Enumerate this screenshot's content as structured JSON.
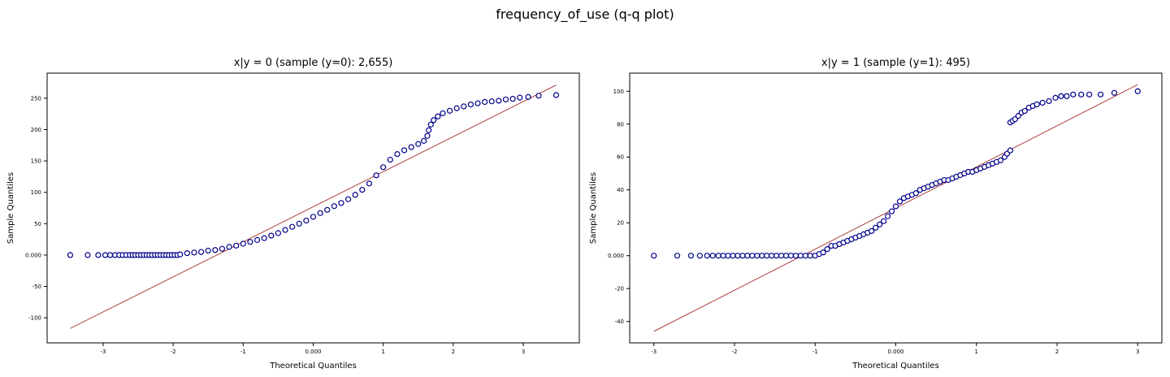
{
  "figure": {
    "title": "frequency_of_use (q-q plot)"
  },
  "chart_data": [
    {
      "type": "scatter",
      "title": "x|y = 0 (sample (y=0): 2,655)",
      "xlabel": "Theoretical Quantiles",
      "ylabel": "Sample Quantiles",
      "xlim": [
        -3.8,
        3.8
      ],
      "ylim": [
        -140,
        290
      ],
      "xticks": [
        -3,
        -2,
        -1,
        0,
        1,
        2,
        3
      ],
      "xtick_labels": [
        "-3",
        "-2",
        "-1",
        "0.000",
        "1",
        "2",
        "3"
      ],
      "yticks": [
        -100,
        -50,
        0,
        50,
        100,
        150,
        200,
        250
      ],
      "ytick_labels": [
        "-100",
        "-50",
        "0.000",
        "50",
        "100",
        "150",
        "200",
        "250"
      ],
      "reference_line": {
        "x": [
          -3.47,
          3.47
        ],
        "y": [
          -117,
          271
        ]
      },
      "points": [
        [
          -3.47,
          0
        ],
        [
          -3.22,
          0
        ],
        [
          -3.07,
          0
        ],
        [
          -2.97,
          0
        ],
        [
          -2.9,
          0
        ],
        [
          -2.83,
          0
        ],
        [
          -2.77,
          0
        ],
        [
          -2.72,
          0
        ],
        [
          -2.67,
          0
        ],
        [
          -2.62,
          0
        ],
        [
          -2.58,
          0
        ],
        [
          -2.54,
          0
        ],
        [
          -2.5,
          0
        ],
        [
          -2.46,
          0
        ],
        [
          -2.42,
          0
        ],
        [
          -2.38,
          0
        ],
        [
          -2.34,
          0
        ],
        [
          -2.3,
          0
        ],
        [
          -2.26,
          0
        ],
        [
          -2.22,
          0
        ],
        [
          -2.18,
          0
        ],
        [
          -2.14,
          0
        ],
        [
          -2.1,
          0
        ],
        [
          -2.06,
          0
        ],
        [
          -2.02,
          0
        ],
        [
          -1.98,
          0
        ],
        [
          -1.94,
          0
        ],
        [
          -1.9,
          1
        ],
        [
          -1.8,
          3
        ],
        [
          -1.7,
          4
        ],
        [
          -1.6,
          5
        ],
        [
          -1.5,
          7
        ],
        [
          -1.4,
          8
        ],
        [
          -1.3,
          10
        ],
        [
          -1.2,
          13
        ],
        [
          -1.1,
          15
        ],
        [
          -1.0,
          18
        ],
        [
          -0.9,
          21
        ],
        [
          -0.8,
          24
        ],
        [
          -0.7,
          27
        ],
        [
          -0.6,
          31
        ],
        [
          -0.5,
          35
        ],
        [
          -0.4,
          40
        ],
        [
          -0.3,
          45
        ],
        [
          -0.2,
          50
        ],
        [
          -0.1,
          55
        ],
        [
          0.0,
          61
        ],
        [
          0.1,
          67
        ],
        [
          0.2,
          72
        ],
        [
          0.3,
          78
        ],
        [
          0.4,
          83
        ],
        [
          0.5,
          89
        ],
        [
          0.6,
          96
        ],
        [
          0.7,
          104
        ],
        [
          0.8,
          114
        ],
        [
          0.9,
          127
        ],
        [
          1.0,
          140
        ],
        [
          1.1,
          152
        ],
        [
          1.2,
          161
        ],
        [
          1.3,
          167
        ],
        [
          1.4,
          172
        ],
        [
          1.5,
          177
        ],
        [
          1.58,
          182
        ],
        [
          1.63,
          190
        ],
        [
          1.65,
          199
        ],
        [
          1.68,
          208
        ],
        [
          1.72,
          215
        ],
        [
          1.78,
          221
        ],
        [
          1.85,
          226
        ],
        [
          1.95,
          230
        ],
        [
          2.05,
          234
        ],
        [
          2.15,
          237
        ],
        [
          2.25,
          240
        ],
        [
          2.35,
          242
        ],
        [
          2.45,
          244
        ],
        [
          2.55,
          245
        ],
        [
          2.65,
          246
        ],
        [
          2.75,
          248
        ],
        [
          2.85,
          249
        ],
        [
          2.95,
          251
        ],
        [
          3.07,
          252
        ],
        [
          3.22,
          254
        ],
        [
          3.47,
          255
        ]
      ]
    },
    {
      "type": "scatter",
      "title": "x|y = 1 (sample (y=1): 495)",
      "xlabel": "Theoretical Quantiles",
      "ylabel": "Sample Quantiles",
      "xlim": [
        -3.3,
        3.3
      ],
      "ylim": [
        -53,
        111
      ],
      "xticks": [
        -3,
        -2,
        -1,
        0,
        1,
        2,
        3
      ],
      "xtick_labels": [
        "-3",
        "-2",
        "-1",
        "0.000",
        "1",
        "2",
        "3"
      ],
      "yticks": [
        -40,
        -20,
        0,
        20,
        40,
        60,
        80,
        100
      ],
      "ytick_labels": [
        "-40",
        "-20",
        "0.000",
        "20",
        "40",
        "60",
        "80",
        "100"
      ],
      "reference_line": {
        "x": [
          -3.0,
          3.0
        ],
        "y": [
          -46,
          104
        ]
      },
      "points": [
        [
          -3.0,
          0
        ],
        [
          -2.71,
          0
        ],
        [
          -2.54,
          0
        ],
        [
          -2.43,
          0
        ],
        [
          -2.34,
          0
        ],
        [
          -2.27,
          0
        ],
        [
          -2.2,
          0
        ],
        [
          -2.14,
          0
        ],
        [
          -2.08,
          0
        ],
        [
          -2.02,
          0
        ],
        [
          -1.96,
          0
        ],
        [
          -1.9,
          0
        ],
        [
          -1.84,
          0
        ],
        [
          -1.78,
          0
        ],
        [
          -1.72,
          0
        ],
        [
          -1.66,
          0
        ],
        [
          -1.6,
          0
        ],
        [
          -1.54,
          0
        ],
        [
          -1.48,
          0
        ],
        [
          -1.42,
          0
        ],
        [
          -1.36,
          0
        ],
        [
          -1.3,
          0
        ],
        [
          -1.24,
          0
        ],
        [
          -1.18,
          0
        ],
        [
          -1.12,
          0
        ],
        [
          -1.06,
          0
        ],
        [
          -1.0,
          0
        ],
        [
          -0.95,
          1
        ],
        [
          -0.9,
          2
        ],
        [
          -0.85,
          4
        ],
        [
          -0.8,
          6
        ],
        [
          -0.75,
          6
        ],
        [
          -0.7,
          7
        ],
        [
          -0.65,
          8
        ],
        [
          -0.6,
          9
        ],
        [
          -0.55,
          10
        ],
        [
          -0.5,
          11
        ],
        [
          -0.45,
          12
        ],
        [
          -0.4,
          13
        ],
        [
          -0.35,
          14
        ],
        [
          -0.3,
          15
        ],
        [
          -0.25,
          17
        ],
        [
          -0.2,
          19
        ],
        [
          -0.15,
          21
        ],
        [
          -0.1,
          24
        ],
        [
          -0.05,
          27
        ],
        [
          0.0,
          30
        ],
        [
          0.05,
          33
        ],
        [
          0.1,
          35
        ],
        [
          0.15,
          36
        ],
        [
          0.2,
          37
        ],
        [
          0.25,
          38
        ],
        [
          0.3,
          40
        ],
        [
          0.35,
          41
        ],
        [
          0.4,
          42
        ],
        [
          0.45,
          43
        ],
        [
          0.5,
          44
        ],
        [
          0.55,
          45
        ],
        [
          0.6,
          46
        ],
        [
          0.65,
          46
        ],
        [
          0.7,
          47
        ],
        [
          0.75,
          48
        ],
        [
          0.8,
          49
        ],
        [
          0.85,
          50
        ],
        [
          0.9,
          51
        ],
        [
          0.95,
          51
        ],
        [
          1.0,
          52
        ],
        [
          1.05,
          53
        ],
        [
          1.1,
          54
        ],
        [
          1.15,
          55
        ],
        [
          1.2,
          56
        ],
        [
          1.25,
          57
        ],
        [
          1.3,
          58
        ],
        [
          1.35,
          60
        ],
        [
          1.38,
          62
        ],
        [
          1.42,
          64
        ],
        [
          1.42,
          81
        ],
        [
          1.45,
          82
        ],
        [
          1.48,
          83
        ],
        [
          1.52,
          85
        ],
        [
          1.56,
          87
        ],
        [
          1.6,
          88
        ],
        [
          1.65,
          90
        ],
        [
          1.7,
          91
        ],
        [
          1.75,
          92
        ],
        [
          1.82,
          93
        ],
        [
          1.9,
          94
        ],
        [
          1.98,
          96
        ],
        [
          2.05,
          97
        ],
        [
          2.12,
          97
        ],
        [
          2.2,
          98
        ],
        [
          2.3,
          98
        ],
        [
          2.4,
          98
        ],
        [
          2.54,
          98
        ],
        [
          2.71,
          99
        ],
        [
          3.0,
          100
        ]
      ]
    }
  ]
}
